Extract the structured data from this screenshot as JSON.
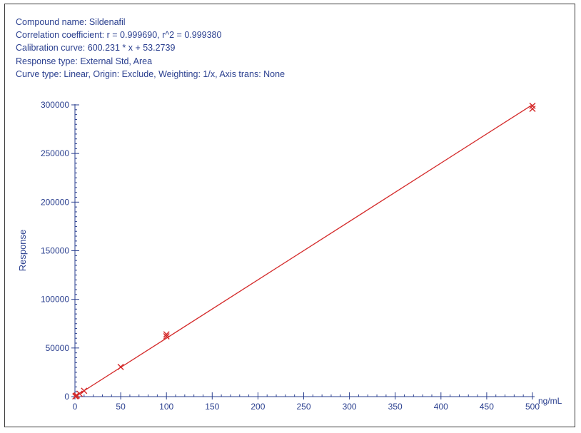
{
  "header": {
    "compound": "Compound name: Sildenafil",
    "correlation": "Correlation coefficient: r = 0.999690, r^2 = 0.999380",
    "calibration": "Calibration curve: 600.231 * x + 53.2739",
    "response_type": "Response type: External Std, Area",
    "curve_type": "Curve type: Linear, Origin: Exclude, Weighting: 1/x, Axis trans: None"
  },
  "colors": {
    "axis": "#2a3f8f",
    "fit_line": "#d42a2a",
    "points": "#d42a2a"
  },
  "chart_data": {
    "type": "scatter",
    "title": "",
    "xlabel": "ng/mL",
    "ylabel": "Response",
    "xlim": [
      0,
      500
    ],
    "ylim": [
      0,
      300000
    ],
    "x_ticks": [
      0,
      50,
      100,
      150,
      200,
      250,
      300,
      350,
      400,
      450,
      500
    ],
    "y_ticks": [
      0,
      50000,
      100000,
      150000,
      200000,
      250000,
      300000
    ],
    "x_tick_labels": [
      "0",
      "50",
      "100",
      "150",
      "200",
      "250",
      "300",
      "350",
      "400",
      "450",
      "500"
    ],
    "y_tick_labels": [
      "0",
      "50000",
      "100000",
      "150000",
      "200000",
      "250000",
      "300000"
    ],
    "series": [
      {
        "x": [
          0.5,
          1,
          2,
          5,
          10,
          50,
          100,
          100,
          500,
          500
        ],
        "y": [
          300,
          600,
          1200,
          3000,
          6000,
          30500,
          62000,
          64000,
          296000,
          299000
        ]
      }
    ],
    "fit": {
      "slope": 600.231,
      "intercept": 53.2739,
      "x_range": [
        0,
        500
      ]
    },
    "grid": false
  }
}
